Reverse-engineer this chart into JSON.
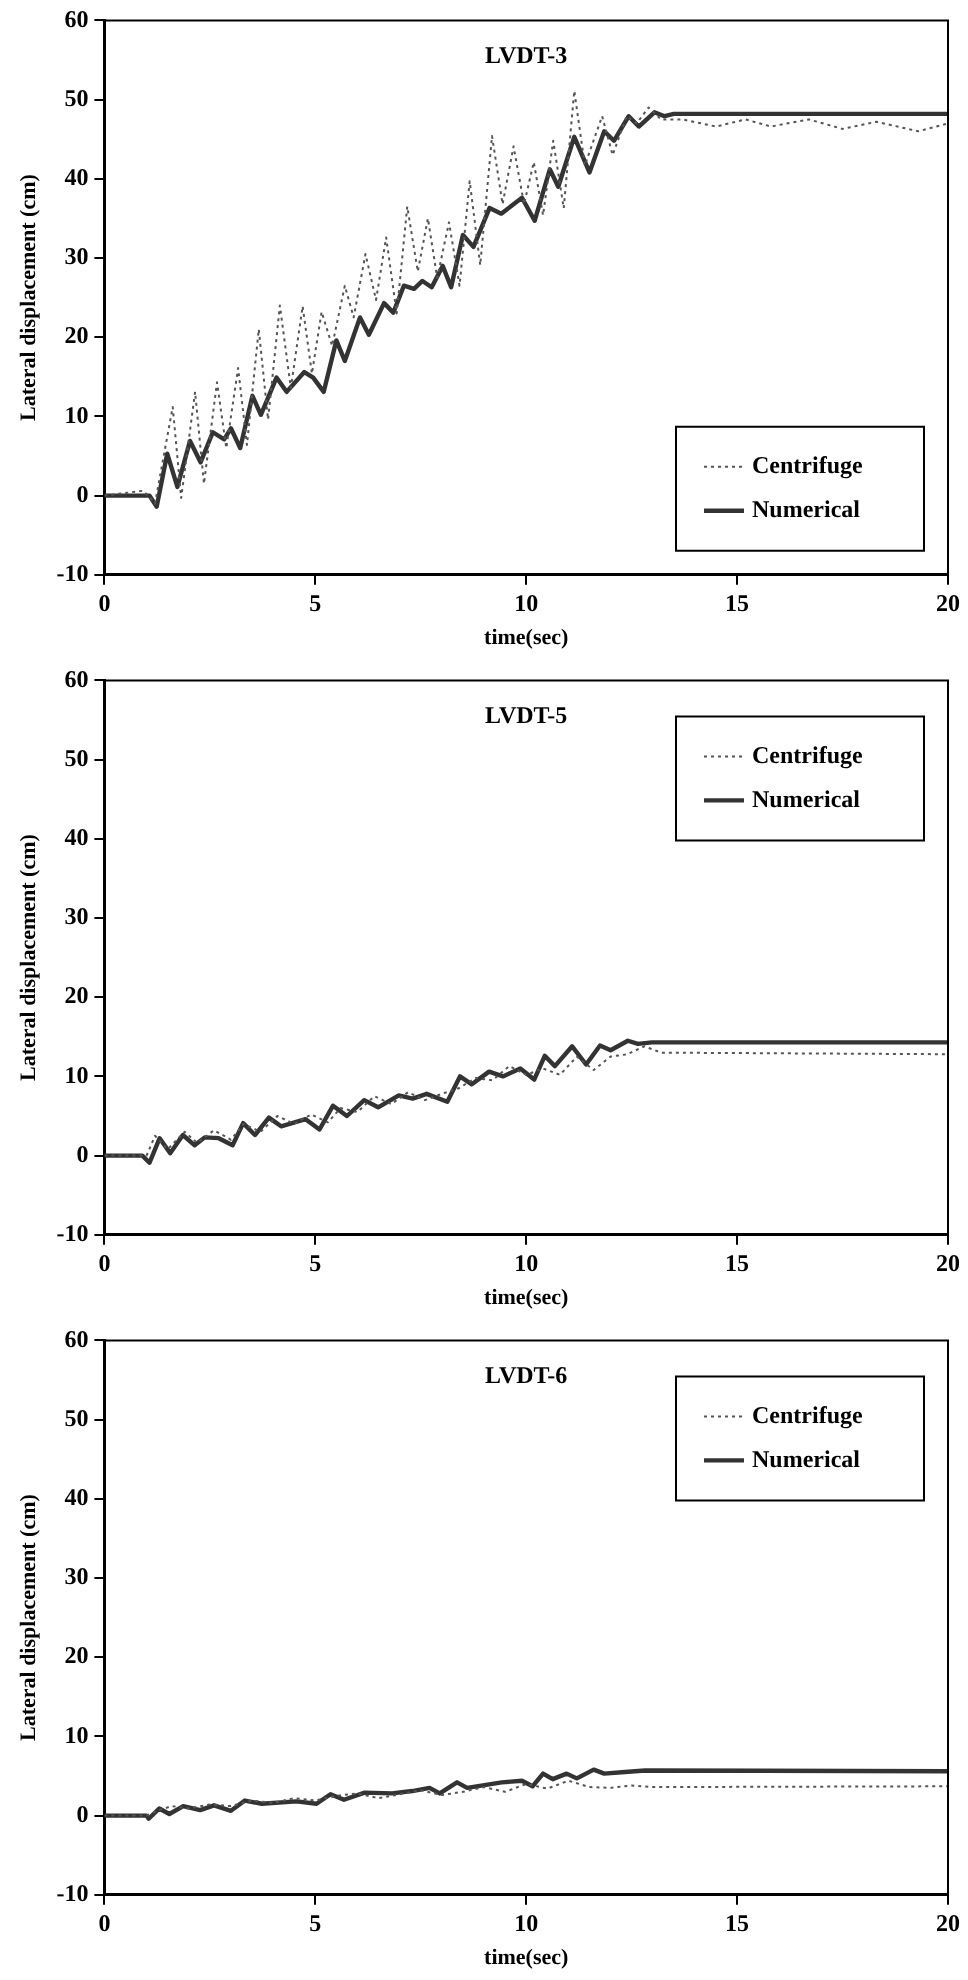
{
  "chart_data": [
    {
      "type": "line",
      "title": "LVDT-3",
      "xlabel": "time(sec)",
      "ylabel": "Lateral displacement (cm)",
      "xlim": [
        0,
        20
      ],
      "xticks": [
        0,
        5,
        10,
        15,
        20
      ],
      "ylim": [
        -10,
        60
      ],
      "yticks": [
        -10,
        0,
        10,
        20,
        30,
        40,
        50,
        60
      ],
      "grid": false,
      "legend": "bottom right",
      "series": [
        {
          "name": "Centrifuge",
          "color": "#555555",
          "line_style": "dotted",
          "x": [
            0,
            0.9,
            1.05,
            1.2,
            1.62,
            1.82,
            2.15,
            2.36,
            2.67,
            2.89,
            3.17,
            3.38,
            3.66,
            3.88,
            4.16,
            4.42,
            4.7,
            4.92,
            5.15,
            5.4,
            5.7,
            5.91,
            6.19,
            6.44,
            6.68,
            6.93,
            7.18,
            7.43,
            7.67,
            7.89,
            8.17,
            8.42,
            8.66,
            8.91,
            9.19,
            9.44,
            9.7,
            9.95,
            10.18,
            10.4,
            10.64,
            10.89,
            11.14,
            11.39,
            11.8,
            12.05,
            12.38,
            12.62,
            12.9,
            13.2,
            13.7,
            14.5,
            15.2,
            15.8,
            16.7,
            17.5,
            18.3,
            19.3,
            20
          ],
          "values": [
            0,
            0.6,
            0,
            -1,
            11.2,
            -0.3,
            13.1,
            1.5,
            14.3,
            6,
            16.1,
            6.4,
            21,
            9.6,
            24,
            13.6,
            23.9,
            15.4,
            23.2,
            18.9,
            26.5,
            22.5,
            30.5,
            24.7,
            32.6,
            23,
            36.5,
            28.3,
            35,
            27.5,
            34.5,
            26.5,
            39.7,
            29.1,
            45.4,
            36.8,
            44.1,
            36.8,
            42.1,
            35.4,
            44.8,
            36.3,
            51.1,
            41.7,
            47.9,
            43,
            47.9,
            47,
            49,
            47.5,
            47.5,
            46.6,
            47.5,
            46.6,
            47.5,
            46.3,
            47.2,
            46,
            47
          ]
        },
        {
          "name": "Numerical",
          "color": "#333333",
          "line_style": "solid",
          "x": [
            0,
            1.07,
            1.24,
            1.49,
            1.73,
            2.03,
            2.28,
            2.57,
            2.84,
            3,
            3.22,
            3.51,
            3.71,
            4.08,
            4.32,
            4.74,
            4.95,
            5.2,
            5.5,
            5.7,
            6.06,
            6.27,
            6.63,
            6.85,
            7.1,
            7.34,
            7.54,
            7.76,
            8.02,
            8.22,
            8.5,
            8.75,
            9.13,
            9.41,
            9.9,
            10.2,
            10.56,
            10.76,
            11.14,
            11.5,
            11.85,
            12.08,
            12.43,
            12.67,
            13.04,
            13.28,
            13.5,
            20
          ],
          "values": [
            0,
            0,
            -1.4,
            5.3,
            1.1,
            6.9,
            4.2,
            8,
            7.1,
            8.5,
            6,
            12.6,
            10.2,
            14.9,
            13.1,
            15.6,
            14.9,
            13.1,
            19.6,
            17,
            22.5,
            20.3,
            24.3,
            23.1,
            26.5,
            26.1,
            27.1,
            26.3,
            29,
            26.3,
            32.9,
            31.4,
            36.3,
            35.6,
            37.6,
            34.7,
            41.2,
            39,
            45.3,
            40.8,
            46,
            44.8,
            47.9,
            46.6,
            48.4,
            47.9,
            48.2,
            48.2
          ]
        }
      ]
    },
    {
      "type": "line",
      "title": "LVDT-5",
      "xlabel": "time(sec)",
      "ylabel": "Lateral displacement (cm)",
      "xlim": [
        0,
        20
      ],
      "xticks": [
        0,
        5,
        10,
        15,
        20
      ],
      "ylim": [
        -10,
        60
      ],
      "yticks": [
        -10,
        0,
        10,
        20,
        30,
        40,
        50,
        60
      ],
      "grid": false,
      "legend": "top right",
      "series": [
        {
          "name": "Centrifuge",
          "color": "#555555",
          "line_style": "dotted",
          "x": [
            0,
            1,
            1.2,
            1.5,
            1.9,
            2.2,
            2.6,
            3,
            3.3,
            3.7,
            4.1,
            4.5,
            4.9,
            5.3,
            5.6,
            6,
            6.4,
            6.8,
            7.2,
            7.6,
            8,
            8.4,
            8.8,
            9.2,
            9.6,
            10,
            10.4,
            10.8,
            11.2,
            11.6,
            12,
            12.4,
            12.8,
            13.2,
            20
          ],
          "values": [
            0,
            0,
            2.5,
            0.8,
            3,
            1.6,
            3.2,
            2,
            4,
            3,
            5,
            4,
            5.2,
            4.2,
            6,
            5.5,
            7.5,
            6.5,
            8,
            7,
            7.8,
            8.5,
            9.8,
            9.5,
            11.3,
            10.2,
            11,
            10.2,
            12.5,
            10.8,
            12.5,
            12.8,
            13.8,
            13,
            12.8
          ]
        },
        {
          "name": "Numerical",
          "color": "#333333",
          "line_style": "solid",
          "x": [
            0,
            0.9,
            1.07,
            1.31,
            1.56,
            1.86,
            2.14,
            2.38,
            2.71,
            3.04,
            3.29,
            3.57,
            3.9,
            4.19,
            4.77,
            5.1,
            5.42,
            5.75,
            6.16,
            6.49,
            6.98,
            7.31,
            7.64,
            8.13,
            8.43,
            8.71,
            9.12,
            9.45,
            9.86,
            10.19,
            10.44,
            10.68,
            11.09,
            11.42,
            11.75,
            12,
            12.41,
            12.65,
            12.98,
            20
          ],
          "values": [
            0,
            0,
            -0.9,
            2.2,
            0.3,
            2.6,
            1.3,
            2.3,
            2.2,
            1.3,
            4.1,
            2.6,
            4.8,
            3.7,
            4.6,
            3.3,
            6.3,
            5,
            7,
            6.1,
            7.6,
            7.2,
            7.8,
            6.8,
            10,
            9,
            10.6,
            10,
            11,
            9.6,
            12.6,
            11.3,
            13.8,
            11.5,
            13.9,
            13.3,
            14.5,
            14.1,
            14.3,
            14.3
          ]
        }
      ]
    },
    {
      "type": "line",
      "title": "LVDT-6",
      "xlabel": "time(sec)",
      "ylabel": "Lateral displacement (cm)",
      "xlim": [
        0,
        20
      ],
      "xticks": [
        0,
        5,
        10,
        15,
        20
      ],
      "ylim": [
        -10,
        60
      ],
      "yticks": [
        -10,
        0,
        10,
        20,
        30,
        40,
        50,
        60
      ],
      "grid": false,
      "legend": "top right",
      "series": [
        {
          "name": "Centrifuge",
          "color": "#555555",
          "line_style": "dotted",
          "x": [
            0,
            1,
            1.3,
            1.6,
            2,
            2.5,
            3,
            3.5,
            4,
            4.5,
            5,
            5.5,
            6,
            6.5,
            7,
            7.5,
            8,
            8.5,
            9,
            9.5,
            10,
            10.5,
            11,
            11.5,
            12,
            12.5,
            13,
            20
          ],
          "values": [
            0,
            0,
            0.7,
            1.2,
            0.9,
            1.4,
            1.2,
            1.9,
            1.6,
            2.2,
            1.9,
            2.5,
            2.8,
            2.2,
            2.7,
            3.2,
            2.6,
            3,
            3.6,
            3,
            4,
            3.4,
            4.4,
            3.6,
            3.5,
            3.8,
            3.6,
            3.7
          ]
        },
        {
          "name": "Numerical",
          "color": "#333333",
          "line_style": "solid",
          "x": [
            0,
            1,
            1.05,
            1.3,
            1.54,
            1.87,
            2.27,
            2.6,
            3,
            3.33,
            3.73,
            4.55,
            5.03,
            5.36,
            5.68,
            6.17,
            6.82,
            7.3,
            7.71,
            7.95,
            8.36,
            8.6,
            9.42,
            9.9,
            10.15,
            10.4,
            10.63,
            10.96,
            11.2,
            11.6,
            11.85,
            12.34,
            12.82,
            20
          ],
          "values": [
            0,
            0,
            -0.4,
            0.9,
            0.2,
            1.2,
            0.7,
            1.3,
            0.6,
            1.9,
            1.5,
            1.8,
            1.5,
            2.7,
            2,
            2.9,
            2.8,
            3.1,
            3.5,
            2.8,
            4.2,
            3.5,
            4.2,
            4.4,
            3.7,
            5.3,
            4.6,
            5.3,
            4.7,
            5.8,
            5.3,
            5.5,
            5.7,
            5.6
          ]
        }
      ]
    }
  ]
}
